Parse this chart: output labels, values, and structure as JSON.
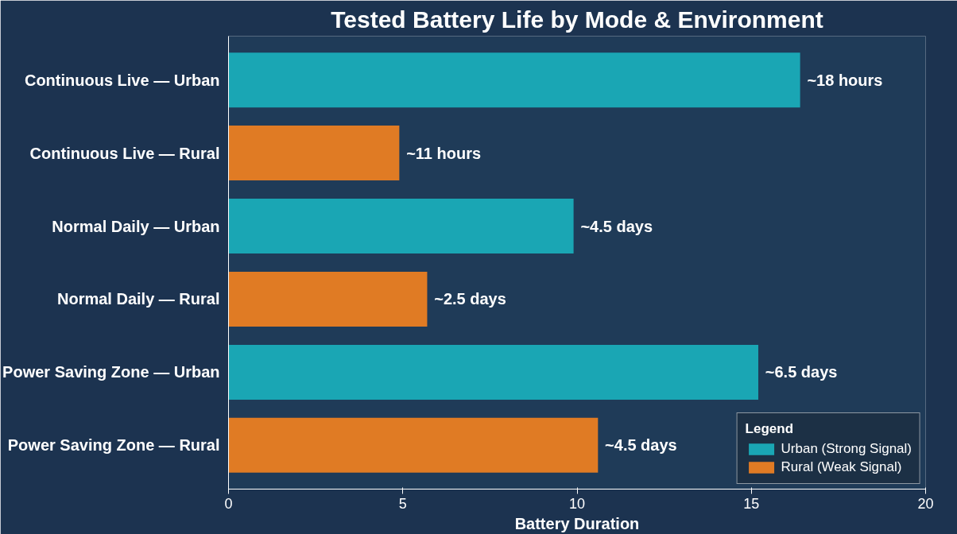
{
  "chart_data": {
    "type": "bar",
    "orientation": "horizontal",
    "title": "Tested Battery Life by Mode & Environment",
    "xlabel": "Battery Duration",
    "categories": [
      "Continuous Live — Urban",
      "Continuous Live — Rural",
      "Normal Daily — Urban",
      "Normal Daily — Rural",
      "Power Saving Zone — Urban",
      "Power Saving Zone — Rural"
    ],
    "series": [
      {
        "name": "Urban (Strong Signal)",
        "color": "#1aa6b4",
        "values": [
          16.4,
          null,
          9.9,
          null,
          15.2,
          null
        ]
      },
      {
        "name": "Rural (Weak Signal)",
        "color": "#e07b24",
        "values": [
          null,
          4.9,
          null,
          5.7,
          null,
          10.6
        ]
      }
    ],
    "annotations": [
      {
        "text": "~18 hours",
        "x": 16.4,
        "y": "Continuous Live — Urban"
      },
      {
        "text": "~11 hours",
        "x": 4.9,
        "y": "Continuous Live — Rural"
      },
      {
        "text": "~4.5 days",
        "x": 9.9,
        "y": "Normal Daily — Urban"
      },
      {
        "text": "~2.5 days",
        "x": 5.7,
        "y": "Normal Daily — Rural"
      },
      {
        "text": "~6.5 days",
        "x": 15.2,
        "y": "Power Saving Zone — Urban"
      },
      {
        "text": "~4.5 days",
        "x": 10.6,
        "y": "Power Saving Zone — Rural"
      }
    ],
    "xlim": [
      0,
      20
    ],
    "xticks": [
      0,
      5,
      10,
      15,
      20
    ],
    "legend_title": "Legend",
    "legend": "bottom right",
    "grid": false
  }
}
